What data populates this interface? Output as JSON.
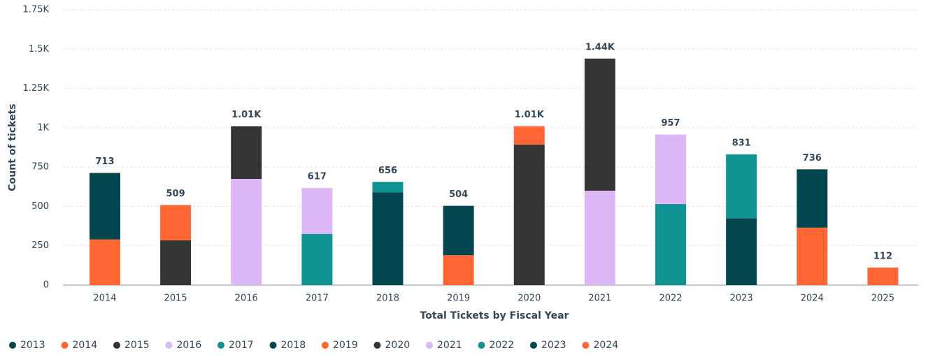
{
  "chart_data": {
    "type": "stacked_bar",
    "x_label": "Total Tickets by Fiscal Year",
    "y_label": "Count of tickets",
    "categories": [
      "2014",
      "2015",
      "2016",
      "2017",
      "2018",
      "2019",
      "2020",
      "2021",
      "2022",
      "2023",
      "2024",
      "2025"
    ],
    "series": [
      {
        "name": "2013",
        "color": "#02474f",
        "values": [
          423,
          null,
          null,
          null,
          null,
          null,
          null,
          null,
          null,
          null,
          null,
          null
        ]
      },
      {
        "name": "2014",
        "color": "#ff6633",
        "values": [
          290,
          224,
          null,
          null,
          null,
          null,
          null,
          null,
          null,
          null,
          null,
          null
        ]
      },
      {
        "name": "2015",
        "color": "#363432",
        "values": [
          null,
          285,
          335,
          null,
          null,
          null,
          null,
          null,
          null,
          null,
          null,
          null
        ]
      },
      {
        "name": "2016",
        "color": "#ddb6f5",
        "values": [
          null,
          null,
          675,
          292,
          null,
          null,
          null,
          null,
          null,
          null,
          null,
          null
        ]
      },
      {
        "name": "2017",
        "color": "#0f9292",
        "values": [
          null,
          null,
          null,
          325,
          66,
          null,
          null,
          null,
          null,
          null,
          null,
          null
        ]
      },
      {
        "name": "2018",
        "color": "#02474f",
        "values": [
          null,
          null,
          null,
          null,
          590,
          314,
          null,
          null,
          null,
          null,
          null,
          null
        ]
      },
      {
        "name": "2019",
        "color": "#ff6633",
        "values": [
          null,
          null,
          null,
          null,
          null,
          190,
          117,
          null,
          null,
          null,
          null,
          null
        ]
      },
      {
        "name": "2020",
        "color": "#363432",
        "values": [
          null,
          null,
          null,
          null,
          null,
          null,
          893,
          840,
          null,
          null,
          null,
          null
        ]
      },
      {
        "name": "2021",
        "color": "#ddb6f5",
        "values": [
          null,
          null,
          null,
          null,
          null,
          null,
          null,
          600,
          442,
          null,
          null,
          null
        ]
      },
      {
        "name": "2022",
        "color": "#0f9292",
        "values": [
          null,
          null,
          null,
          null,
          null,
          null,
          null,
          null,
          515,
          406,
          null,
          null
        ]
      },
      {
        "name": "2023",
        "color": "#02474f",
        "values": [
          null,
          null,
          null,
          null,
          null,
          null,
          null,
          null,
          null,
          425,
          371,
          null
        ]
      },
      {
        "name": "2024",
        "color": "#ff6633",
        "values": [
          null,
          null,
          null,
          null,
          null,
          null,
          null,
          null,
          null,
          null,
          365,
          112
        ]
      }
    ],
    "totals": [
      713,
      509,
      1010,
      617,
      656,
      504,
      1010,
      1440,
      957,
      831,
      736,
      112
    ],
    "total_labels": [
      "713",
      "509",
      "1.01K",
      "617",
      "656",
      "504",
      "1.01K",
      "1.44K",
      "957",
      "831",
      "736",
      "112"
    ],
    "ylim": [
      0,
      1750
    ],
    "yticks": [
      0,
      250,
      500,
      750,
      {
        "value": 1000,
        "label": "1K"
      },
      {
        "value": 1250,
        "label": "1.25K"
      },
      {
        "value": 1500,
        "label": "1.5K"
      },
      {
        "value": 1750,
        "label": "1.75K"
      }
    ],
    "grid": true,
    "legend": "bottom-left"
  }
}
